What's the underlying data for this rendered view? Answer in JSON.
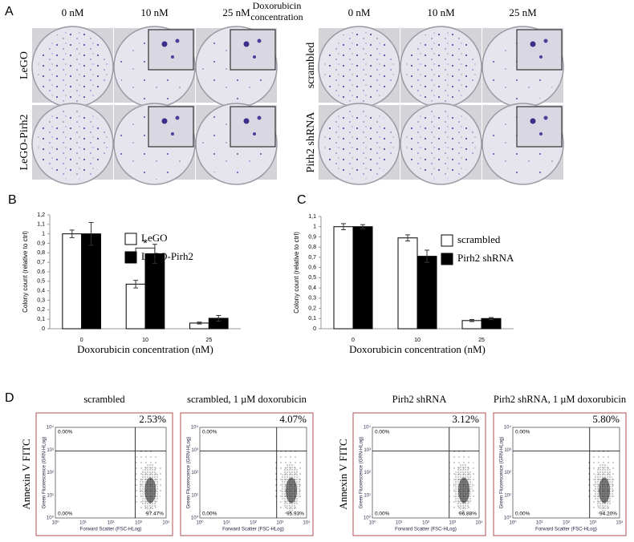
{
  "panel_a": {
    "label": "A",
    "doses": [
      "0 nM",
      "10 nM",
      "25 nM"
    ],
    "dose_header": "Doxorubicin concentration",
    "left_rows": [
      "LeGO",
      "LeGO-Pirh2"
    ],
    "right_rows": [
      "scrambled",
      "Pirh2 shRNA"
    ]
  },
  "chart_data": [
    {
      "type": "bar",
      "panel": "B",
      "y_label": "Colony count (relative to ctrl)",
      "x_label": "Doxorubicin concentration (nM)",
      "categories": [
        "0",
        "10",
        "25"
      ],
      "series": [
        {
          "name": "LeGO",
          "color": "#ffffff",
          "values": [
            1.0,
            0.47,
            0.06
          ],
          "errors": [
            0.04,
            0.04,
            0.01
          ]
        },
        {
          "name": "LeGO-Pirh2",
          "color": "#000000",
          "values": [
            1.0,
            0.79,
            0.11
          ],
          "errors": [
            0.12,
            0.1,
            0.03
          ]
        }
      ],
      "annotation": "*",
      "ylim": [
        0,
        1.2
      ],
      "yticks": [
        0,
        {
          "value": 0.1,
          "label": "0,1"
        },
        {
          "value": 0.2,
          "label": "0,2"
        },
        {
          "value": 0.3,
          "label": "0,3"
        },
        {
          "value": 0.4,
          "label": "0,4"
        },
        {
          "value": 0.5,
          "label": "0,5"
        },
        {
          "value": 0.6,
          "label": "0,6"
        },
        {
          "value": 0.7,
          "label": "0,7"
        },
        {
          "value": 0.8,
          "label": "0,8"
        },
        {
          "value": 0.9,
          "label": "0,9"
        },
        1,
        {
          "value": 1.1,
          "label": "1,1"
        },
        {
          "value": 1.2,
          "label": "1,2"
        }
      ],
      "legend": "top-right"
    },
    {
      "type": "bar",
      "panel": "C",
      "y_label": "Colony count (relative to ctrl)",
      "x_label": "Doxorubicin concentration (nM)",
      "categories": [
        "0",
        "10",
        "25"
      ],
      "series": [
        {
          "name": "scrambled",
          "color": "#ffffff",
          "values": [
            1.0,
            0.89,
            0.08
          ],
          "errors": [
            0.03,
            0.03,
            0.01
          ]
        },
        {
          "name": "Pirh2 shRNA",
          "color": "#000000",
          "values": [
            1.0,
            0.71,
            0.1
          ],
          "errors": [
            0.02,
            0.06,
            0.01
          ]
        }
      ],
      "ylim": [
        0,
        1.1
      ],
      "yticks": [
        0,
        {
          "value": 0.1,
          "label": "0,1"
        },
        {
          "value": 0.2,
          "label": "0,2"
        },
        {
          "value": 0.3,
          "label": "0,3"
        },
        {
          "value": 0.4,
          "label": "0,4"
        },
        {
          "value": 0.5,
          "label": "0,5"
        },
        {
          "value": 0.6,
          "label": "0,6"
        },
        {
          "value": 0.7,
          "label": "0,7"
        },
        {
          "value": 0.8,
          "label": "0,8"
        },
        {
          "value": 0.9,
          "label": "0,9"
        },
        1,
        {
          "value": 1.1,
          "label": "1,1"
        }
      ],
      "legend": "top-right"
    }
  ],
  "panel_d": {
    "label": "D",
    "y_title": "Annexin V FITC",
    "plot_y_axis": "Green Fluorescence (GRN-HLog)",
    "plot_x_axis": "Forward Scatter (FSC-HLog)",
    "axis_ticks": [
      "10⁰",
      "10¹",
      "10²",
      "10³",
      "10⁴"
    ],
    "plots": [
      {
        "title": "scrambled",
        "upper_right": "2.53%",
        "upper_left": "0.00%",
        "lower_left": "0.00%",
        "lower_right": "97.47%"
      },
      {
        "title": "scrambled, 1 µM doxorubicin",
        "upper_right": "4.07%",
        "upper_left": "0.00%",
        "lower_left": "0.00%",
        "lower_right": "95.93%"
      },
      {
        "title": "Pirh2 shRNA",
        "upper_right": "3.12%",
        "upper_left": "0.00%",
        "lower_left": "0.00%",
        "lower_right": "96.88%"
      },
      {
        "title": "Pirh2 shRNA, 1 µM doxorubicin",
        "upper_right": "5.80%",
        "upper_left": "0.00%",
        "lower_left": "0.00%",
        "lower_right": "94.20%"
      }
    ]
  }
}
